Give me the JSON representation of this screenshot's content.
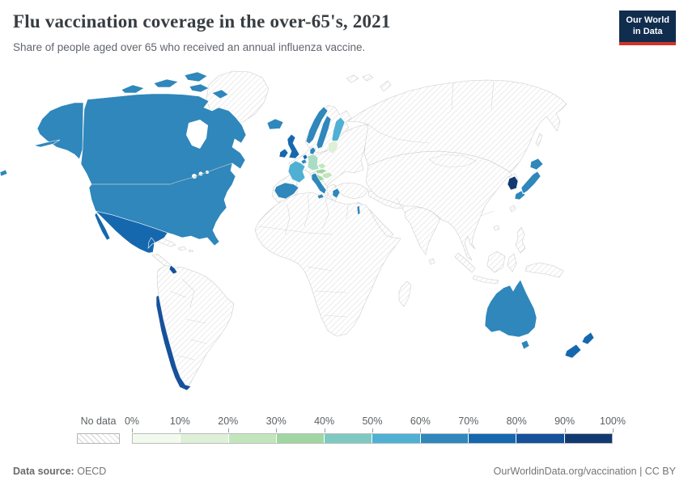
{
  "header": {
    "title": "Flu vaccination coverage in the over-65's, 2021",
    "subtitle": "Share of people aged over 65 who received an annual influenza vaccine.",
    "logo_line1": "Our World",
    "logo_line2": "in Data"
  },
  "footer": {
    "source_label": "Data source:",
    "source_value": "OECD",
    "right_text": "OurWorldinData.org/vaccination | CC BY"
  },
  "legend": {
    "no_data_label": "No data",
    "tick_labels": [
      "0%",
      "10%",
      "20%",
      "30%",
      "40%",
      "50%",
      "60%",
      "70%",
      "80%",
      "90%",
      "100%"
    ],
    "colors": [
      "#f2faee",
      "#def0d8",
      "#c2e6bc",
      "#a0d6a2",
      "#7ecac2",
      "#4fb0d4",
      "#2f87bb",
      "#1668ae",
      "#16519c",
      "#123a72"
    ]
  },
  "chart_data": {
    "type": "choropleth",
    "title": "Flu vaccination coverage in the over-65's, 2021",
    "subtitle": "Share of people aged over 65 who received an annual influenza vaccine.",
    "year": 2021,
    "unit": "%",
    "scale_domain": [
      0,
      100
    ],
    "scale_step": 10,
    "no_data": {
      "label": "No data",
      "pattern": "diagonal-hatch"
    },
    "countries": {
      "canada": {
        "name": "Canada",
        "value_range": "60-70%",
        "color": "#2f87bb"
      },
      "usa": {
        "name": "United States",
        "value_range": "60-70%",
        "color": "#2f87bb"
      },
      "mexico": {
        "name": "Mexico",
        "value_range": "70-80%",
        "color": "#1668ae"
      },
      "costa_rica": {
        "name": "Costa Rica",
        "value_range": "80-90%",
        "color": "#16519c"
      },
      "chile": {
        "name": "Chile",
        "value_range": "80-90%",
        "color": "#16519c"
      },
      "iceland": {
        "name": "Iceland",
        "value_range": "60-70%",
        "color": "#2f87bb"
      },
      "ireland": {
        "name": "Ireland",
        "value_range": "70-80%",
        "color": "#1668ae"
      },
      "uk": {
        "name": "United Kingdom",
        "value_range": "70-80%",
        "color": "#1668ae"
      },
      "france": {
        "name": "France",
        "value_range": "50-60%",
        "color": "#4fb0d4"
      },
      "spain": {
        "name": "Spain",
        "value_range": "60-70%",
        "color": "#2f87bb"
      },
      "netherlands": {
        "name": "Netherlands",
        "value_range": "70-80%",
        "color": "#1668ae"
      },
      "belgium": {
        "name": "Belgium",
        "value_range": "60-70%",
        "color": "#2f87bb"
      },
      "germany": {
        "name": "Germany",
        "value_range": "40-50%",
        "color": "#a9dcc3"
      },
      "denmark": {
        "name": "Denmark",
        "value_range": "60-70%",
        "color": "#2f87bb"
      },
      "norway": {
        "name": "Norway",
        "value_range": "60-70%",
        "color": "#2f87bb"
      },
      "sweden": {
        "name": "Sweden",
        "value_range": "60-70%",
        "color": "#2f87bb"
      },
      "finland": {
        "name": "Finland",
        "value_range": "50-60%",
        "color": "#4fb0d4"
      },
      "baltics": {
        "name": "Baltic states",
        "value_range": "10-20%",
        "color": "#def0d8"
      },
      "czechia": {
        "name": "Czechia",
        "value_range": "20-30%",
        "color": "#c2e6bc"
      },
      "austria": {
        "name": "Austria",
        "value_range": "30-40%",
        "color": "#a0d6a2"
      },
      "hungary": {
        "name": "Hungary",
        "value_range": "20-30%",
        "color": "#c2e6bc"
      },
      "slovenia": {
        "name": "Slovenia",
        "value_range": "30-40%",
        "color": "#a0d6a2"
      },
      "italy": {
        "name": "Italy",
        "value_range": "60-70%",
        "color": "#2f87bb"
      },
      "greece": {
        "name": "Greece",
        "value_range": "60-70%",
        "color": "#2f87bb"
      },
      "israel": {
        "name": "Israel",
        "value_range": "60-70%",
        "color": "#2f87bb"
      },
      "south_korea": {
        "name": "South Korea",
        "value_range": "90-100%",
        "color": "#123a72"
      },
      "japan": {
        "name": "Japan",
        "value_range": "60-70%",
        "color": "#2f87bb"
      },
      "australia": {
        "name": "Australia",
        "value_range": "60-70%",
        "color": "#2f87bb"
      },
      "new_zealand": {
        "name": "New Zealand",
        "value_range": "70-80%",
        "color": "#1668ae"
      }
    }
  }
}
